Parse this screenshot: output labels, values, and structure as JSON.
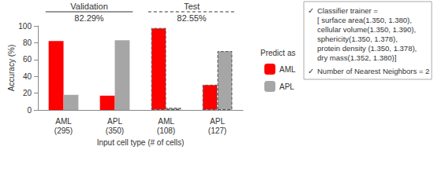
{
  "chart_data": {
    "type": "bar",
    "categories": [
      "AML\n(295)",
      "APL\n(350)",
      "AML\n(108)",
      "APL\n(127)"
    ],
    "series": [
      {
        "name": "AML",
        "color": "#ff0000",
        "values": [
          82,
          17,
          97.5,
          30
        ]
      },
      {
        "name": "APL",
        "color": "#a6a6a6",
        "values": [
          18,
          83,
          2.5,
          70
        ]
      }
    ],
    "legend_title": "Predict as",
    "y_label": "Accuracy (%)",
    "x_label": "Input cell type (# of cells)",
    "ylim": [
      0,
      100
    ],
    "yticks": [
      0,
      20,
      40,
      60,
      80,
      100
    ],
    "grid": false,
    "legend": "right",
    "groups": [
      {
        "name": "Validation",
        "accuracy_label": "82.29%",
        "categories": [
          "AML\n(295)",
          "APL\n(350)"
        ],
        "line_style": "solid"
      },
      {
        "name": "Test",
        "accuracy_label": "82.55%",
        "categories": [
          "AML\n(108)",
          "APL\n(127)"
        ],
        "line_style": "dashed"
      }
    ],
    "notes": [
      {
        "bullet": "✓",
        "lines": [
          "Classifier trainer =",
          "[ surface area(1.350, 1.380),",
          "cellular volume(1.350, 1.390),",
          "sphericity(1.350, 1.378),",
          "protein density (1.350, 1.378),",
          "dry mass(1.352, 1.380)]"
        ]
      },
      {
        "bullet": "✓",
        "lines": [
          "Number of Nearest Neighbors = 2"
        ]
      }
    ]
  }
}
